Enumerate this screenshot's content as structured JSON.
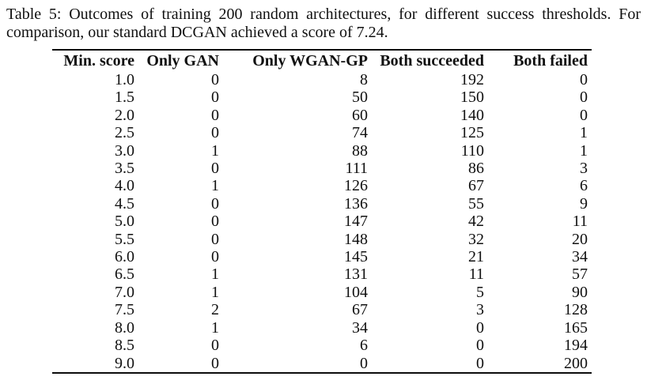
{
  "caption": {
    "line1": "Table 5: Outcomes of training 200 random architectures, for different success thresholds. For",
    "line2": "comparison, our standard DCGAN achieved a score of 7.24."
  },
  "table": {
    "columns": [
      "Min. score",
      "Only GAN",
      "Only WGAN-GP",
      "Both succeeded",
      "Both failed"
    ],
    "rows": [
      [
        "1.0",
        "0",
        "8",
        "192",
        "0"
      ],
      [
        "1.5",
        "0",
        "50",
        "150",
        "0"
      ],
      [
        "2.0",
        "0",
        "60",
        "140",
        "0"
      ],
      [
        "2.5",
        "0",
        "74",
        "125",
        "1"
      ],
      [
        "3.0",
        "1",
        "88",
        "110",
        "1"
      ],
      [
        "3.5",
        "0",
        "111",
        "86",
        "3"
      ],
      [
        "4.0",
        "1",
        "126",
        "67",
        "6"
      ],
      [
        "4.5",
        "0",
        "136",
        "55",
        "9"
      ],
      [
        "5.0",
        "0",
        "147",
        "42",
        "11"
      ],
      [
        "5.5",
        "0",
        "148",
        "32",
        "20"
      ],
      [
        "6.0",
        "0",
        "145",
        "21",
        "34"
      ],
      [
        "6.5",
        "1",
        "131",
        "11",
        "57"
      ],
      [
        "7.0",
        "1",
        "104",
        "5",
        "90"
      ],
      [
        "7.5",
        "2",
        "67",
        "3",
        "128"
      ],
      [
        "8.0",
        "1",
        "34",
        "0",
        "165"
      ],
      [
        "8.5",
        "0",
        "6",
        "0",
        "194"
      ],
      [
        "9.0",
        "0",
        "0",
        "0",
        "200"
      ]
    ]
  }
}
